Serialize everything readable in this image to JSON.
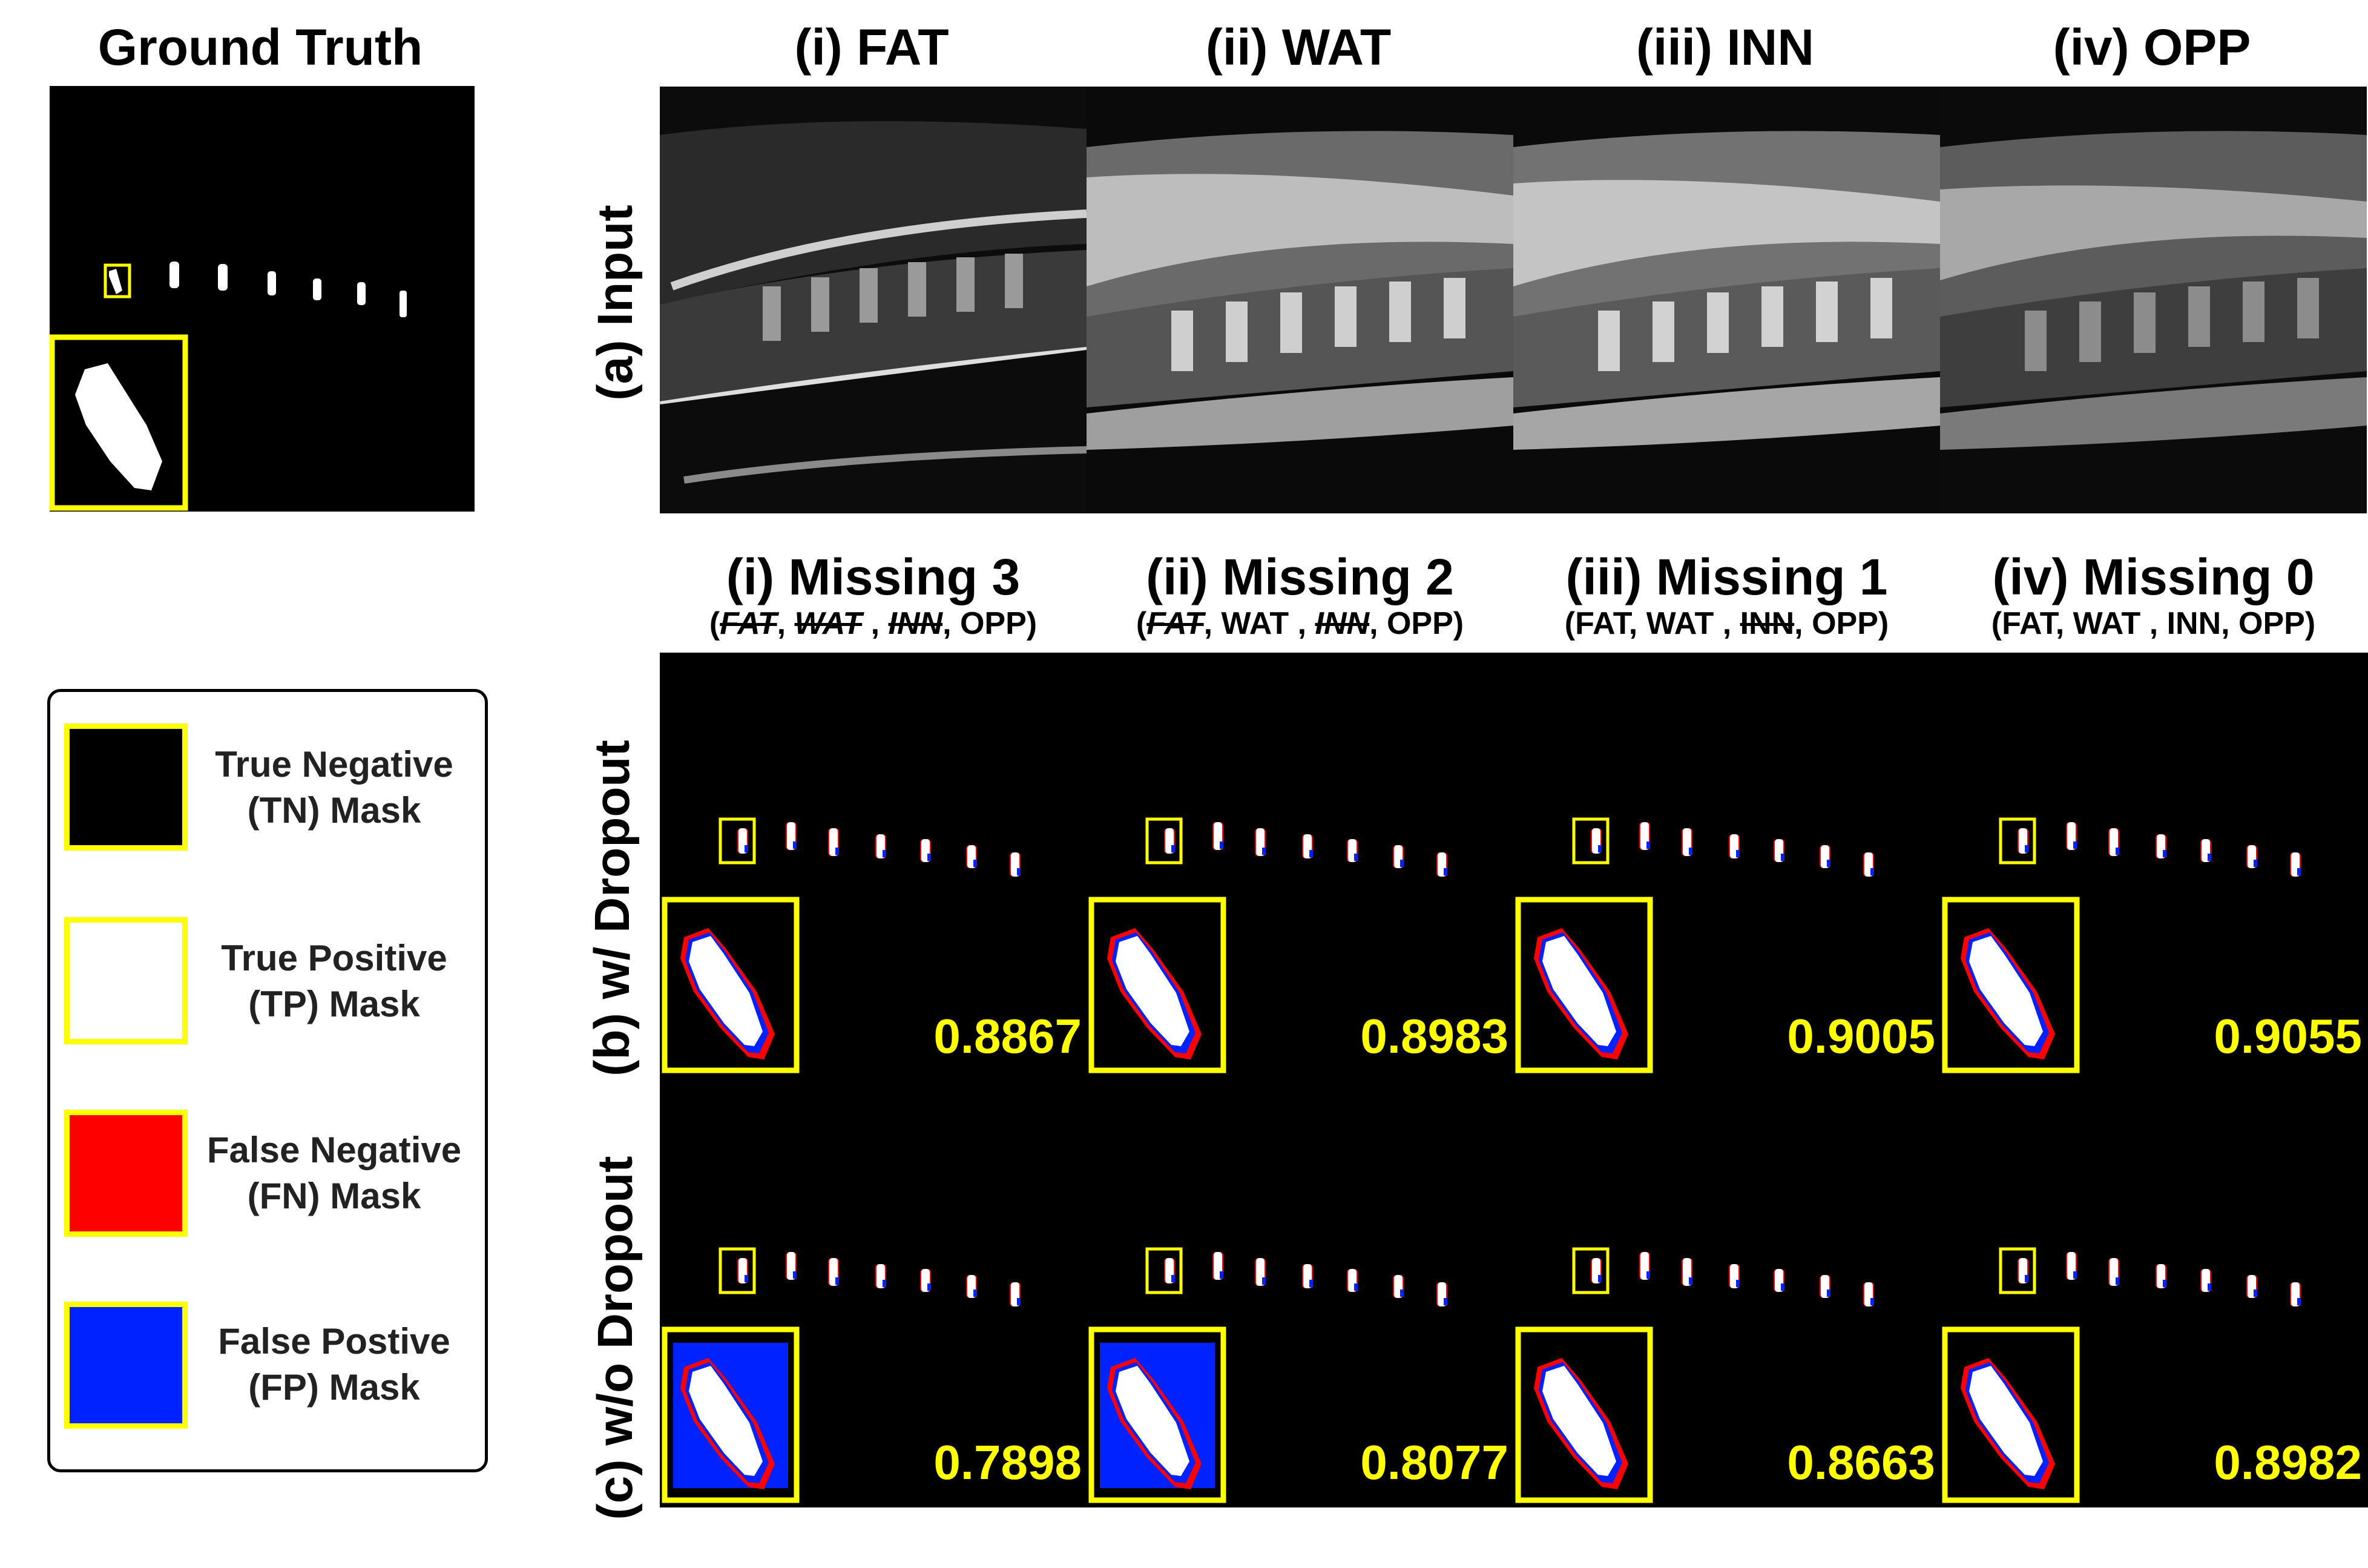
{
  "ground_truth": {
    "title": "Ground Truth"
  },
  "columns_top": [
    "(i) FAT",
    "(ii) WAT",
    "(iii) INN",
    "(iv) OPP"
  ],
  "row_labels": {
    "input": "(a) Input",
    "with_dropout": "(b) w/ Dropout",
    "without_dropout": "(c) w/o Dropout"
  },
  "missing_columns": [
    {
      "title": "(i) Missing 3",
      "sub_html": "(<s>FAT</s>, <s>WAT</s> , <s>INN</s>, OPP)"
    },
    {
      "title": "(ii) Missing 2",
      "sub_html": "(<s>FAT</s>, WAT , <s>INN</s>, OPP)"
    },
    {
      "title": "(iii) Missing 1",
      "sub_html": "(FAT, WAT , <s class=\"plain-strike\">INN</s>, OPP)"
    },
    {
      "title": "(iv) Missing 0",
      "sub_html": "(FAT, WAT , INN, OPP)"
    }
  ],
  "scores_with_dropout": [
    "0.8867",
    "0.8983",
    "0.9005",
    "0.9055"
  ],
  "scores_without_dropout": [
    "0.7898",
    "0.8077",
    "0.8663",
    "0.8982"
  ],
  "legend": [
    {
      "line1": "True Negative",
      "line2": "(TN) Mask",
      "color": "#000000"
    },
    {
      "line1": "True Positive",
      "line2": "(TP) Mask",
      "color": "#ffffff"
    },
    {
      "line1": "False Negative",
      "line2": "(FN) Mask",
      "color": "#ff0000"
    },
    {
      "line1": "False Postive",
      "line2": "(FP) Mask",
      "color": "#0022ff"
    }
  ],
  "colors": {
    "highlight": "#ffff00",
    "tp": "#ffffff",
    "fn": "#ff0000",
    "fp": "#0022ff"
  }
}
